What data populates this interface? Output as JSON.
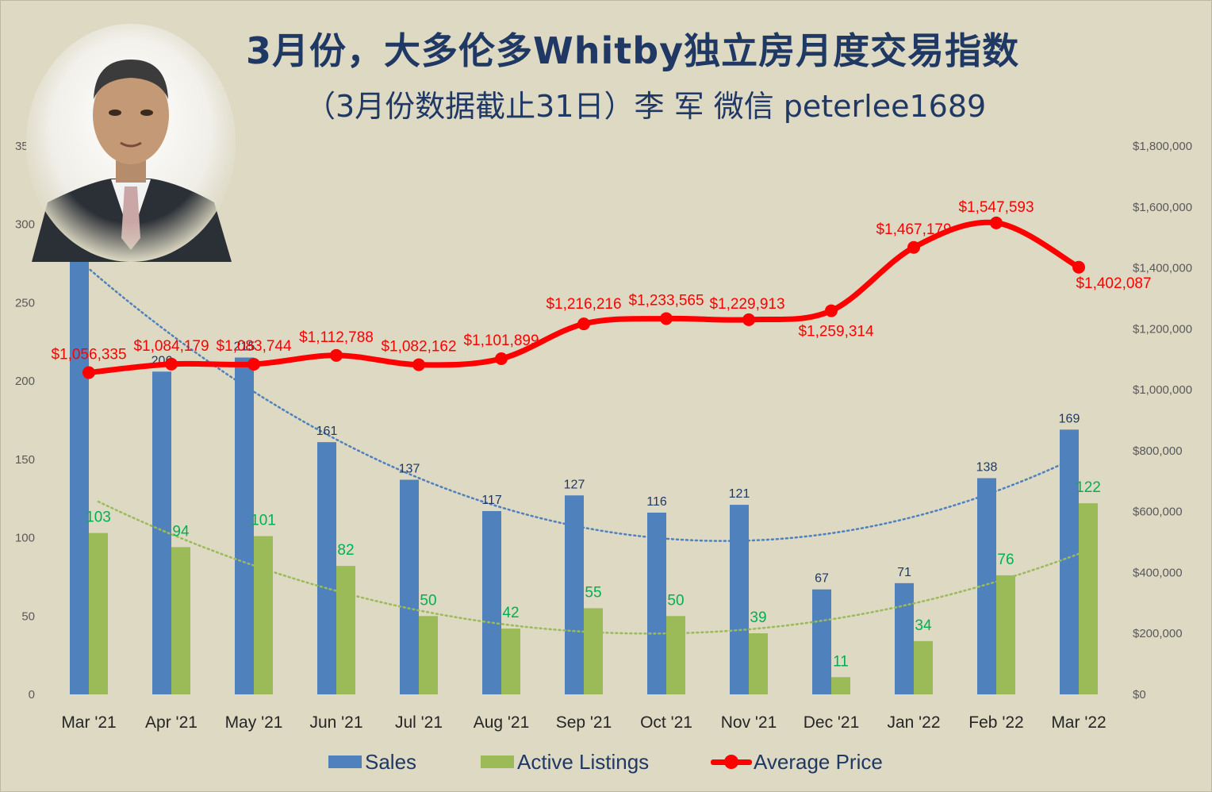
{
  "title": "3月份，大多伦多Whitby独立房月度交易指数",
  "subtitle": "（3月份数据截止31日）李 军 微信 peterlee1689",
  "colors": {
    "sales": "#4f81bd",
    "listings": "#9bbb59",
    "price": "#ff0000",
    "sales_label": "#1f3864",
    "listings_label": "#00b050"
  },
  "chart_data": {
    "type": "bar",
    "categories": [
      "Mar '21",
      "Apr '21",
      "May '21",
      "Jun '21",
      "Jul '21",
      "Aug '21",
      "Sep '21",
      "Oct '21",
      "Nov '21",
      "Dec '21",
      "Jan '22",
      "Feb '22",
      "Mar '22"
    ],
    "series": [
      {
        "name": "Sales",
        "type": "bar",
        "axis": "left",
        "values": [
          287,
          206,
          215,
          161,
          137,
          117,
          127,
          116,
          121,
          67,
          71,
          138,
          169
        ]
      },
      {
        "name": "Active Listings",
        "type": "bar",
        "axis": "left",
        "values": [
          103,
          94,
          101,
          82,
          50,
          42,
          55,
          50,
          39,
          11,
          34,
          76,
          122
        ]
      },
      {
        "name": "Average Price",
        "type": "line",
        "axis": "right",
        "values": [
          1056335,
          1084179,
          1083744,
          1112788,
          1082162,
          1101899,
          1216216,
          1233565,
          1229913,
          1259314,
          1467179,
          1547593,
          1402087
        ],
        "labels": [
          "$1,056,335",
          "$1,084,179",
          "$1,083,744",
          "$1,112,788",
          "$1,082,162",
          "$1,101,899",
          "$1,216,216",
          "$1,233,565",
          "$1,229,913",
          "$1,259,314",
          "$1,467,179",
          "$1,547,593",
          "$1,402,087"
        ]
      }
    ],
    "trendlines": [
      "Sales",
      "Active Listings"
    ],
    "y_left": {
      "ylim": [
        0,
        350
      ],
      "ticks": [
        "0",
        "50",
        "100",
        "150",
        "200",
        "250",
        "300",
        "350"
      ]
    },
    "y_right": {
      "ylim": [
        0,
        1800000
      ],
      "ticks": [
        "$0",
        "$200,000",
        "$400,000",
        "$600,000",
        "$800,000",
        "$1,000,000",
        "$1,200,000",
        "$1,400,000",
        "$1,600,000",
        "$1,800,000"
      ]
    },
    "legend": {
      "position": "bottom",
      "items": [
        "Sales",
        "Active Listings",
        "Average Price"
      ]
    }
  }
}
